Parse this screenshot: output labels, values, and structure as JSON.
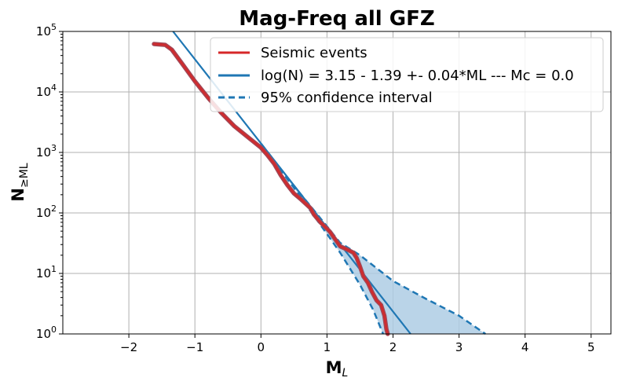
{
  "chart_data": {
    "type": "line",
    "title": "Mag-Freq all GFZ",
    "xlabel": "M",
    "xlabel_sub": "L",
    "ylabel": "N",
    "ylabel_sub": "≥ML",
    "xlim": [
      -3.0,
      5.3
    ],
    "ylim": [
      1,
      100000
    ],
    "yscale": "log",
    "grid": true,
    "legend_position": "top-right",
    "x_ticks": [
      "−2",
      "−1",
      "0",
      "1",
      "2",
      "3",
      "4",
      "5"
    ],
    "y_ticks": [
      {
        "base": "10",
        "exp": "0"
      },
      {
        "base": "10",
        "exp": "1"
      },
      {
        "base": "10",
        "exp": "2"
      },
      {
        "base": "10",
        "exp": "3"
      },
      {
        "base": "10",
        "exp": "4"
      },
      {
        "base": "10",
        "exp": "5"
      }
    ],
    "colors": {
      "events": "#d62728",
      "events_shadow": "#9e4a5a",
      "fit": "#1f77b4",
      "band": "#aecde4"
    },
    "series": [
      {
        "name": "Seismic events",
        "kind": "data",
        "points": [
          [
            -1.62,
            62000
          ],
          [
            -1.45,
            60000
          ],
          [
            -1.35,
            50000
          ],
          [
            -1.2,
            30000
          ],
          [
            -1.0,
            15000
          ],
          [
            -0.8,
            8000
          ],
          [
            -0.6,
            4500
          ],
          [
            -0.4,
            2700
          ],
          [
            -0.2,
            1800
          ],
          [
            0.0,
            1200
          ],
          [
            0.1,
            900
          ],
          [
            0.2,
            650
          ],
          [
            0.3,
            420
          ],
          [
            0.4,
            290
          ],
          [
            0.5,
            210
          ],
          [
            0.6,
            170
          ],
          [
            0.7,
            135
          ],
          [
            0.75,
            120
          ],
          [
            0.8,
            95
          ],
          [
            0.9,
            70
          ],
          [
            1.0,
            55
          ],
          [
            1.05,
            48
          ],
          [
            1.1,
            40
          ],
          [
            1.2,
            28
          ],
          [
            1.3,
            25
          ],
          [
            1.4,
            22
          ],
          [
            1.45,
            18
          ],
          [
            1.5,
            13
          ],
          [
            1.55,
            9
          ],
          [
            1.62,
            7
          ],
          [
            1.68,
            5
          ],
          [
            1.75,
            3.6
          ],
          [
            1.82,
            3.0
          ],
          [
            1.87,
            2.0
          ],
          [
            1.9,
            1.2
          ],
          [
            1.92,
            1.0
          ]
        ]
      },
      {
        "name": "log(N) = 3.15 - 1.39 +- 0.04*ML --- Mc = 0.0",
        "kind": "fit",
        "a": 3.15,
        "b": 1.39
      },
      {
        "name": "95% confidence interval",
        "kind": "confidence",
        "upper": [
          [
            0.0,
            1400
          ],
          [
            0.5,
            280
          ],
          [
            1.0,
            60
          ],
          [
            1.2,
            32
          ],
          [
            1.5,
            20
          ],
          [
            2.0,
            7.5
          ],
          [
            2.5,
            3.8
          ],
          [
            3.0,
            2.0
          ],
          [
            3.4,
            1.0
          ]
        ],
        "lower": [
          [
            0.0,
            1400
          ],
          [
            0.5,
            260
          ],
          [
            1.0,
            45
          ],
          [
            1.2,
            22
          ],
          [
            1.5,
            6.5
          ],
          [
            1.7,
            2.5
          ],
          [
            1.85,
            1.0
          ]
        ]
      }
    ]
  }
}
